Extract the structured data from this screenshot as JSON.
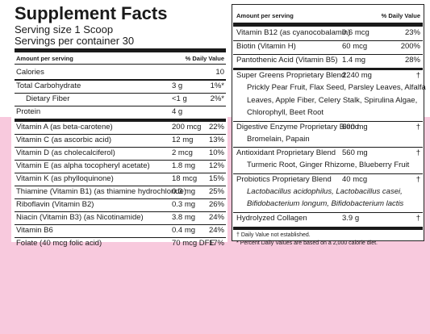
{
  "header": {
    "title": "Supplement Facts",
    "serving_size": "Serving size 1 Scoop",
    "servings": "Servings per container 30"
  },
  "left": {
    "columns": [
      "Amount per serving",
      "% Daily Value"
    ],
    "rows": [
      {
        "name": "Calories",
        "amount": "10"
      },
      {
        "name": "Total Carbohydrate",
        "amount": "3 g",
        "dv": "1%*"
      },
      {
        "name": "Dietary Fiber",
        "amount": "<1 g",
        "dv": "2%*"
      },
      {
        "name": "Protein",
        "amount": "4 g"
      },
      {
        "name": "Vitamin A (as beta-carotene)",
        "amount": "200 mcg",
        "dv": "22%"
      },
      {
        "name": "Vitamin C (as ascorbic acid)",
        "amount": "12 mg",
        "dv": "13%"
      },
      {
        "name": "Vitamin D (as cholecalciferol)",
        "amount": "2 mcg",
        "dv": "10%"
      },
      {
        "name": "Vitamin E (as alpha tocopheryl acetate)",
        "amount": "1.8 mg",
        "dv": "12%"
      },
      {
        "name": "Vitamin K (as phylloquinone)",
        "amount": "18 mcg",
        "dv": "15%"
      },
      {
        "name": "Thiamine (Vitamin B1) (as thiamine hydrochloride)",
        "amount": "0.3 mg",
        "dv": "25%"
      },
      {
        "name": "Riboflavin (Vitamin B2)",
        "amount": "0.3 mg",
        "dv": "26%"
      },
      {
        "name": "Niacin (Vitamin B3) (as Nicotinamide)",
        "amount": "3.8 mg",
        "dv": "24%"
      },
      {
        "name": "Vitamin B6",
        "amount": "0.4 mg",
        "dv": "24%"
      },
      {
        "name": "Folate (40 mcg folic acid)",
        "amount": "70 mcg DFE",
        "dv": "17%"
      }
    ]
  },
  "right": {
    "columns": [
      "Amount per serving",
      "% Daily Value"
    ],
    "rows": [
      {
        "name": "Vitamin B12 (as cyanocobalamin)",
        "amount": "0.6 mcg",
        "dv": "23%"
      },
      {
        "name": "Biotin (Vitamin H)",
        "amount": "60 mcg",
        "dv": "200%"
      },
      {
        "name": "Pantothenic Acid (Vitamin B5)",
        "amount": "1.4 mg",
        "dv": "28%"
      },
      {
        "name": "Super Greens Proprietary Blend",
        "amount": "2240 mg",
        "dv": "†",
        "details": [
          "Prickly Pear Fruit, Flax Seed, Parsley Leaves, Alfalfa",
          "Leaves, Apple Fiber, Celery Stalk, Spirulina Algae,",
          "Chlorophyll, Beet Root"
        ]
      },
      {
        "name": "Digestive Enzyme Proprietary Blend",
        "amount": "600 mg",
        "dv": "†",
        "details": [
          "Bromelain, Papain"
        ]
      },
      {
        "name": "Antioxidant Proprietary Blend",
        "amount": "560 mg",
        "dv": "†",
        "details": [
          "Turmeric Root, Ginger Rhizome,  Blueberry Fruit"
        ]
      },
      {
        "name": "Probiotics Proprietary Blend",
        "amount": "40 mcg",
        "dv": "†",
        "details": [
          "Lactobacillus acidophilus, Lactobacillus casei,",
          "Bifidobacterium longum, Bifidobacterium lactis"
        ]
      },
      {
        "name": "Hydrolyzed Collagen",
        "amount": "3.9 g",
        "dv": "†"
      }
    ],
    "footnotes": [
      "† Daily Value not established.",
      "* Percent Daily Values are based on a 2,000 calorie diet."
    ]
  }
}
